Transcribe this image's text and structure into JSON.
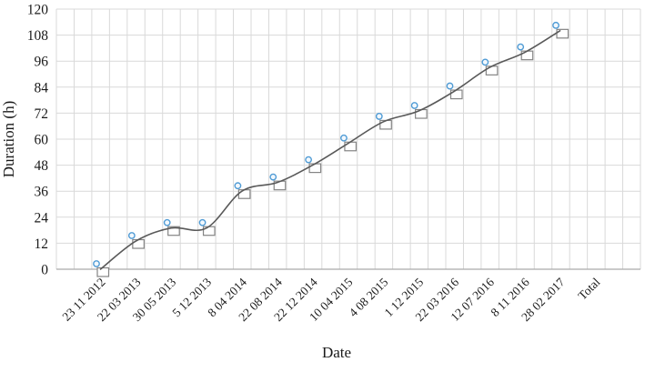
{
  "chart_data": {
    "type": "line",
    "title": "",
    "xlabel": "Date",
    "ylabel": "Duration (h)",
    "ylim": [
      0,
      120
    ],
    "yticks": [
      0,
      12,
      24,
      36,
      48,
      60,
      72,
      84,
      96,
      108,
      120
    ],
    "grid": "horizontal major + vertical minor gridlines, light gray",
    "legend": "none",
    "smooth": true,
    "categories": [
      "23 11 2012",
      "22 03 2013",
      "30 05 2013",
      "5 12 2013",
      "8 04 2014",
      "22 08 2014",
      "22 12 2014",
      "10 04 2015",
      "4 08 2015",
      "1 12 2015",
      "22 03 2016",
      "12 07 2016",
      "8 11 2016",
      "28 02 2017",
      "Total"
    ],
    "series": [
      {
        "marker": "open-blue-circle-over-open-gray-square",
        "values": [
          0,
          13,
          19,
          19,
          36,
          40,
          48,
          58,
          68,
          73,
          82,
          93,
          100,
          110,
          null
        ]
      }
    ]
  },
  "colors": {
    "gridline": "#d9d9d9",
    "axis_line": "#ababab",
    "line": "#595959",
    "square_marker": "#848484",
    "square_fill": "#ffffff",
    "circle_marker": "#4f9bd5",
    "circle_fill": "#f2f8fd",
    "text": "#1a1a1a"
  }
}
